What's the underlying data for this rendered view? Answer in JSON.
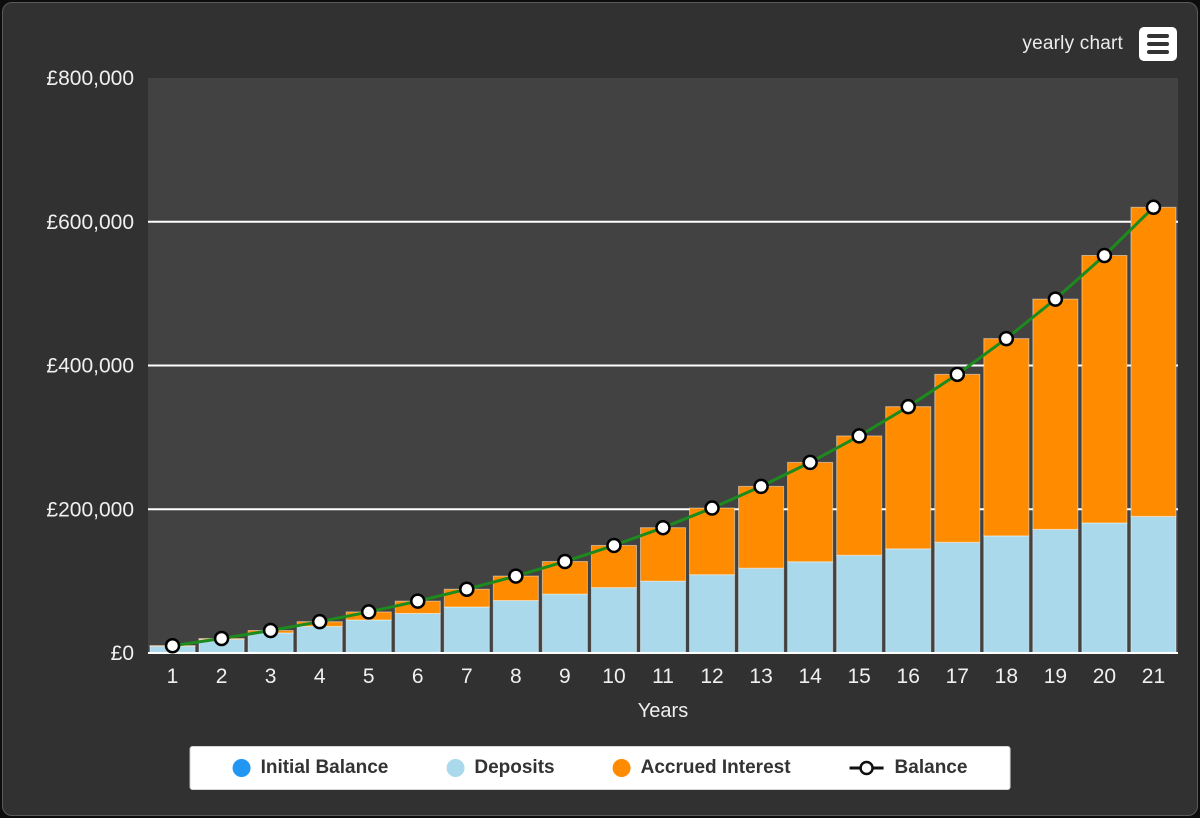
{
  "header": {
    "title": "yearly chart"
  },
  "chart_data": {
    "type": "bar",
    "stacked": true,
    "x": [
      1,
      2,
      3,
      4,
      5,
      6,
      7,
      8,
      9,
      10,
      11,
      12,
      13,
      14,
      15,
      16,
      17,
      18,
      19,
      20,
      21
    ],
    "xlabel": "Years",
    "ylim": [
      0,
      800000
    ],
    "grid": true,
    "legend_position": "bottom",
    "y_ticks": [
      {
        "value": 0,
        "label": "£0"
      },
      {
        "value": 200000,
        "label": "£200,000"
      },
      {
        "value": 400000,
        "label": "£400,000"
      },
      {
        "value": 600000,
        "label": "£600,000"
      },
      {
        "value": 800000,
        "label": "£800,000"
      }
    ],
    "series": [
      {
        "name": "Initial Balance",
        "type": "bar",
        "color": "#2196F3",
        "values": [
          1000,
          1000,
          1000,
          1000,
          1000,
          1000,
          1000,
          1000,
          1000,
          1000,
          1000,
          1000,
          1000,
          1000,
          1000,
          1000,
          1000,
          1000,
          1000,
          1000,
          1000
        ]
      },
      {
        "name": "Deposits",
        "type": "bar",
        "color": "#A9D9EA",
        "values": [
          9000,
          18000,
          27000,
          36000,
          45000,
          54000,
          63000,
          72000,
          81000,
          90000,
          99000,
          108000,
          117000,
          126000,
          135000,
          144000,
          153000,
          162000,
          171000,
          180000,
          189000
        ]
      },
      {
        "name": "Accrued Interest",
        "type": "bar",
        "color": "#FF8C00",
        "values": [
          105,
          1166,
          3283,
          6568,
          11143,
          17143,
          24718,
          34033,
          45272,
          58635,
          74347,
          92654,
          113827,
          138169,
          166012,
          197723,
          233709,
          274418,
          320347,
          372044,
          430113
        ]
      },
      {
        "name": "Balance",
        "type": "line",
        "color": "#1d8a1d",
        "values": [
          10105,
          20166,
          31283,
          43568,
          57143,
          72143,
          88718,
          107033,
          127272,
          149635,
          174347,
          201654,
          231827,
          265169,
          302012,
          342723,
          387709,
          437418,
          492347,
          553044,
          620113
        ]
      }
    ]
  },
  "legend": {
    "items": [
      {
        "label": "Initial Balance",
        "marker": "dot",
        "color": "#2196F3"
      },
      {
        "label": "Deposits",
        "marker": "dot",
        "color": "#A9D9EA"
      },
      {
        "label": "Accrued Interest",
        "marker": "dot",
        "color": "#FF8C00"
      },
      {
        "label": "Balance",
        "marker": "line-dot",
        "color": "#111111"
      }
    ]
  },
  "colors": {
    "panel_bg": "#313131",
    "plot_bg": "#424242",
    "gridline": "#ffffff",
    "axis_text": "#f0f0f0",
    "marker_fill": "#ffffff",
    "marker_stroke": "#000000"
  }
}
